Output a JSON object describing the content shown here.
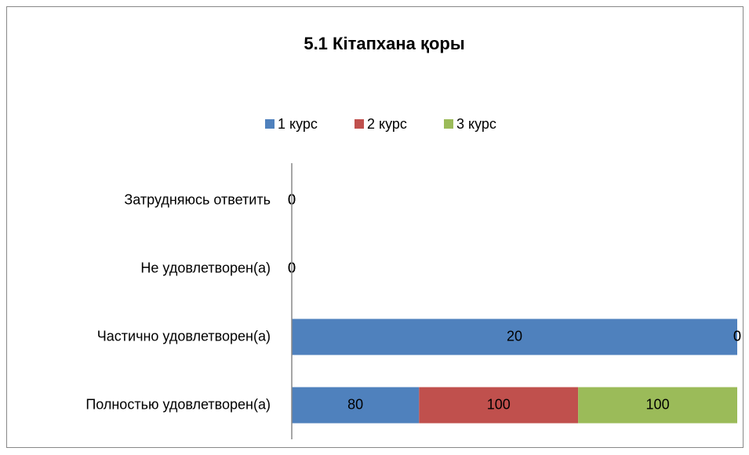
{
  "chart_data": {
    "type": "bar",
    "orientation": "horizontal",
    "stacking": "percent",
    "title": "5.1 Кітапхана қоры",
    "categories": [
      "Затрудняюсь ответить",
      "Не удовлетворен(а)",
      "Частично удовлетворен(а)",
      "Полностью удовлетворен(а)"
    ],
    "series": [
      {
        "name": "1 курс",
        "color": "#4f81bd",
        "values": [
          0,
          0,
          20,
          80
        ]
      },
      {
        "name": "2 курс",
        "color": "#c0504d",
        "values": [
          0,
          0,
          0,
          100
        ]
      },
      {
        "name": "3 курс",
        "color": "#9bbb59",
        "values": [
          0,
          0,
          0,
          100
        ]
      }
    ],
    "legend": "top",
    "data_labels": true
  }
}
